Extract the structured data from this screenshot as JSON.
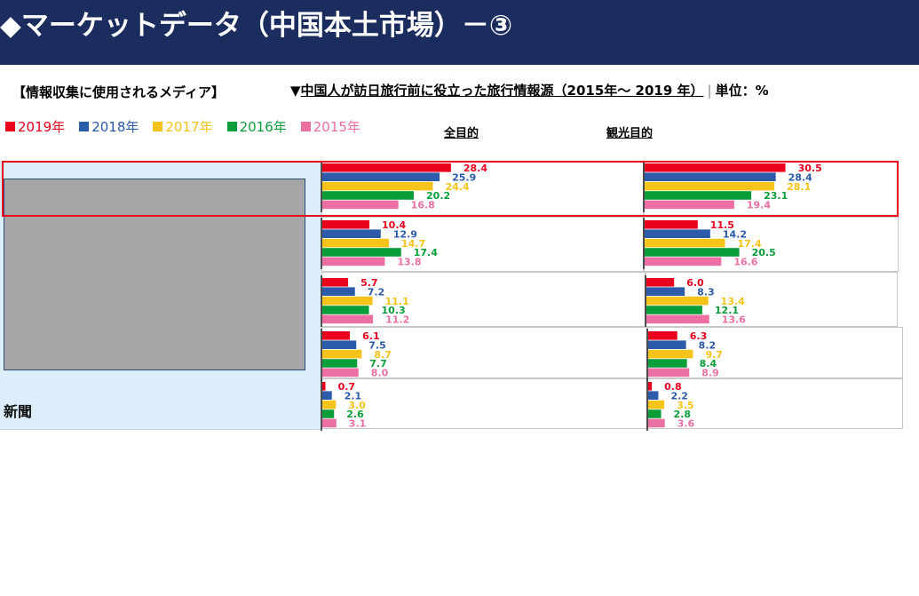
{
  "header": {
    "title": "◆マーケットデータ（中国本土市場）－③"
  },
  "section_label": "【情報収集に使用されるメディア】",
  "chart_title": {
    "prefix": "▼",
    "main": "中国人が訪日旅行前に役立った旅行情報源（2015年～ 2019 年）",
    "separator": "|",
    "unit": "単位：%"
  },
  "colors": {
    "2019年": "#e8001c",
    "2018年": "#2b5ba9",
    "2017年": "#f5c31a",
    "2016年": "#0a9e3a",
    "2015年": "#ec6fa4"
  },
  "chart_data": {
    "type": "bar",
    "orientation": "horizontal",
    "legend": [
      "2019年",
      "2018年",
      "2017年",
      "2016年",
      "2015年"
    ],
    "legend_position": "top-left",
    "panels": [
      "全目的",
      "観光目的"
    ],
    "categories": [
      "",
      "",
      "",
      "",
      "新聞"
    ],
    "series": {
      "全目的": [
        [
          28.4,
          25.9,
          24.4,
          20.2,
          16.8
        ],
        [
          10.4,
          12.9,
          14.7,
          17.4,
          13.8
        ],
        [
          5.7,
          7.2,
          11.1,
          10.3,
          11.2
        ],
        [
          6.1,
          7.5,
          8.7,
          7.7,
          8.0
        ],
        [
          0.7,
          2.1,
          3.0,
          2.6,
          3.1
        ]
      ],
      "観光目的": [
        [
          30.5,
          28.4,
          28.1,
          23.1,
          19.4
        ],
        [
          11.5,
          14.2,
          17.4,
          20.5,
          16.6
        ],
        [
          6.0,
          8.3,
          13.4,
          12.1,
          13.6
        ],
        [
          6.3,
          8.2,
          9.7,
          8.4,
          8.9
        ],
        [
          0.8,
          2.2,
          3.5,
          2.8,
          3.6
        ]
      ]
    },
    "value_labels": true,
    "grid": false
  }
}
